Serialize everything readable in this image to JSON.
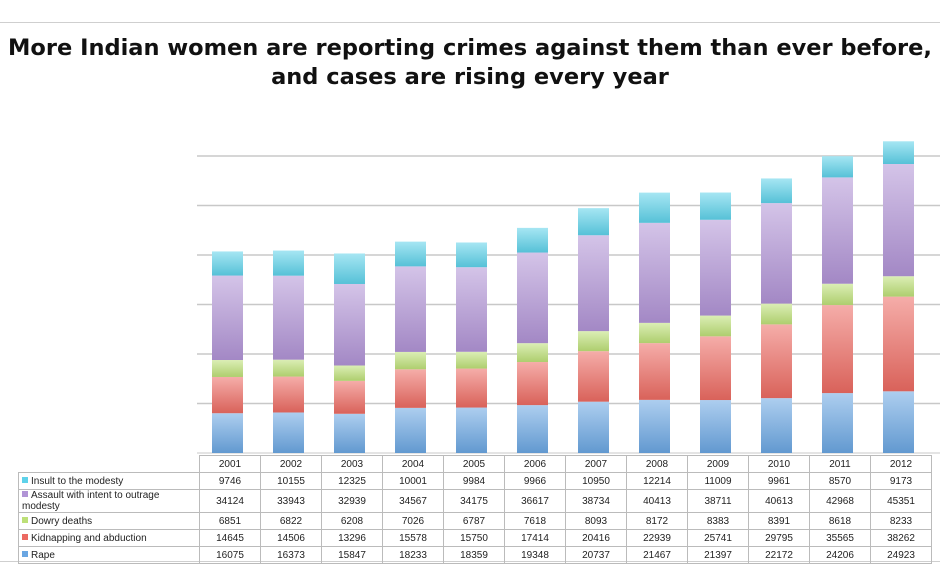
{
  "chart_data": {
    "type": "bar",
    "stacked": true,
    "title": "More Indian women are reporting crimes against them than ever before, and cases are rising every year",
    "categories": [
      "2001",
      "2002",
      "2003",
      "2004",
      "2005",
      "2006",
      "2007",
      "2008",
      "2009",
      "2010",
      "2011",
      "2012"
    ],
    "series": [
      {
        "name": "Rape",
        "color": "#6aa6e2",
        "values": [
          16075,
          16373,
          15847,
          18233,
          18359,
          19348,
          20737,
          21467,
          21397,
          22172,
          24206,
          24923
        ]
      },
      {
        "name": "Kidnapping and abduction",
        "color": "#ec6a62",
        "values": [
          14645,
          14506,
          13296,
          15578,
          15750,
          17414,
          20416,
          22939,
          25741,
          29795,
          35565,
          38262
        ]
      },
      {
        "name": "Dowry deaths",
        "color": "#bde078",
        "values": [
          6851,
          6822,
          6208,
          7026,
          6787,
          7618,
          8093,
          8172,
          8383,
          8391,
          8618,
          8233
        ]
      },
      {
        "name": "Assault with intent to outrage modesty",
        "color": "#b194d6",
        "values": [
          34124,
          33943,
          32939,
          34567,
          34175,
          36617,
          38734,
          40413,
          38711,
          40613,
          42968,
          45351
        ]
      },
      {
        "name": "Insult to the modesty",
        "color": "#5ed2ea",
        "values": [
          9746,
          10155,
          12325,
          10001,
          9984,
          9966,
          10950,
          12214,
          11009,
          9961,
          8570,
          9173
        ]
      }
    ],
    "ylim": [
      0,
      120000
    ],
    "grid": true,
    "legend": "data-table below chart",
    "table_row_order": [
      "Insult to the modesty",
      "Assault with intent to outrage modesty",
      "Dowry deaths",
      "Kidnapping and abduction",
      "Rape"
    ]
  }
}
